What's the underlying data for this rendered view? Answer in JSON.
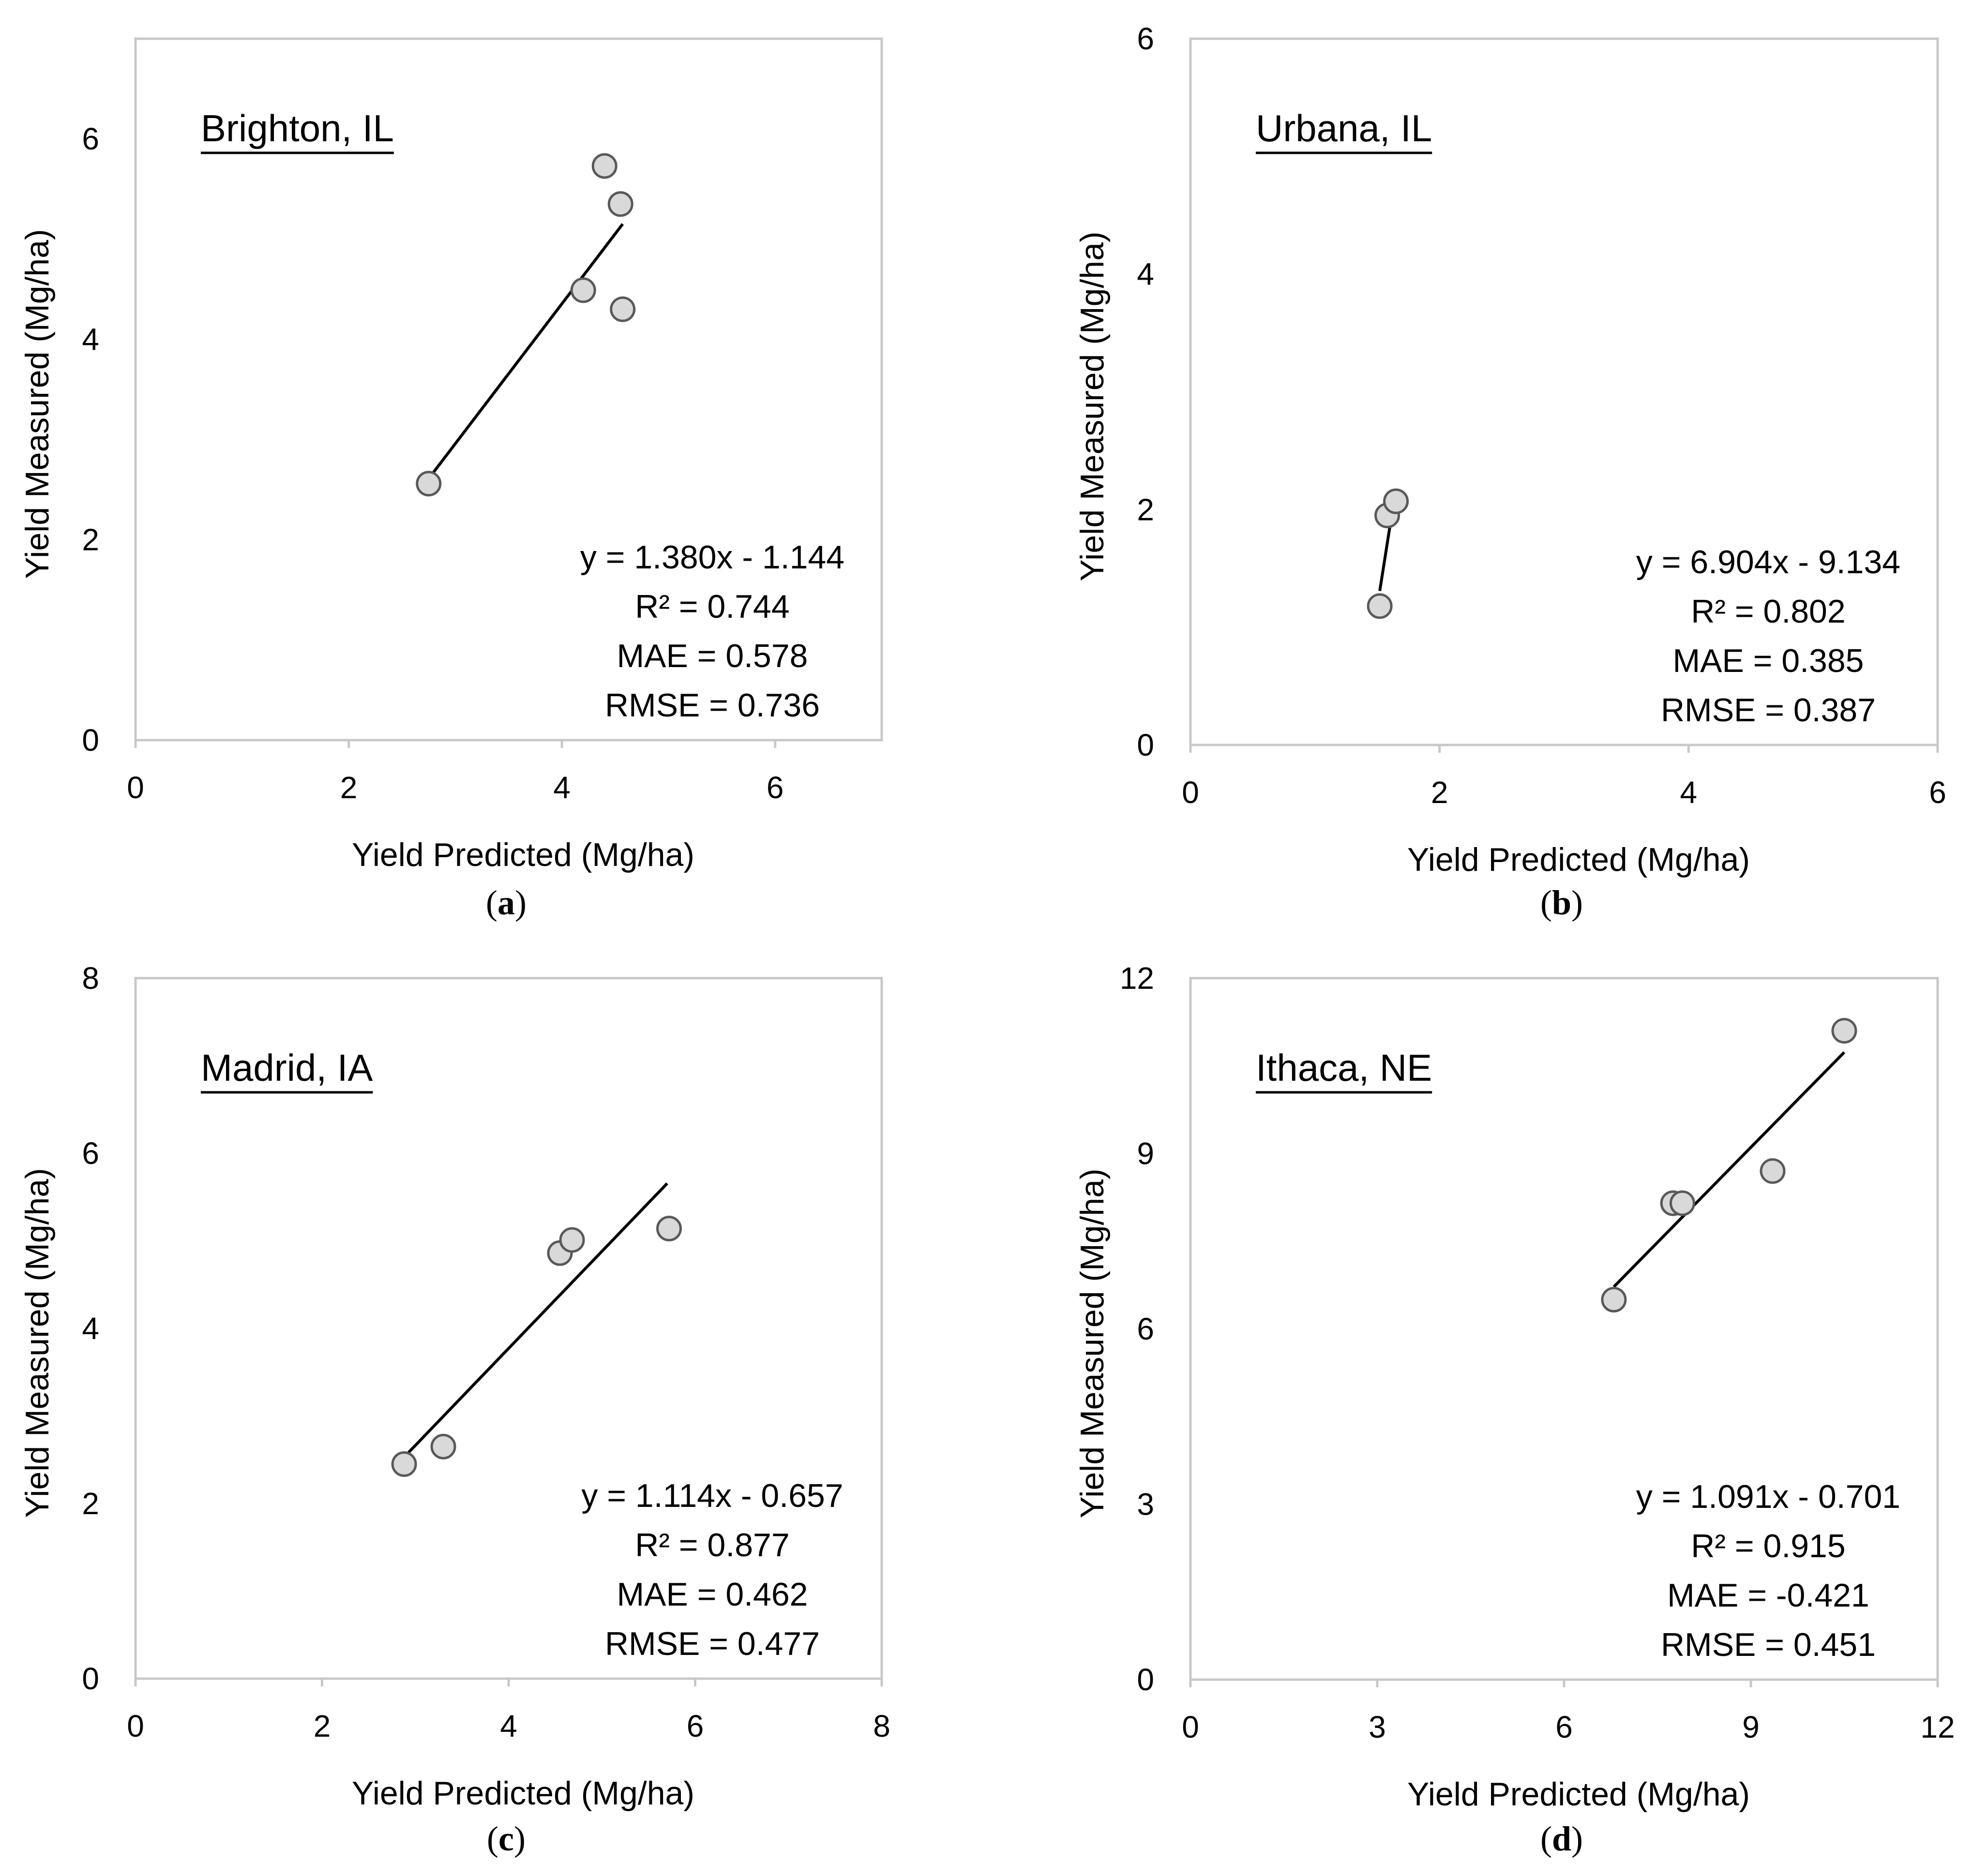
{
  "chart_data": [
    {
      "type": "scatter",
      "panel_label": "a",
      "site": "Brighton, IL",
      "xlabel": "Yield Predicted (Mg/ha)",
      "ylabel": "Yield Measured (Mg/ha)",
      "xlim": [
        0,
        7
      ],
      "ylim": [
        0,
        7
      ],
      "xticks": [
        0,
        2,
        4,
        6
      ],
      "yticks": [
        0,
        2,
        4,
        6
      ],
      "x": [
        2.75,
        4.2,
        4.4,
        4.55,
        4.57
      ],
      "y": [
        2.56,
        4.49,
        5.73,
        5.35,
        4.3
      ],
      "trendline": {
        "x": [
          2.75,
          4.57
        ]
      },
      "stats": [
        "y = 1.380x - 1.144",
        "R² = 0.744",
        "MAE = 0.578",
        "RMSE = 0.736"
      ]
    },
    {
      "type": "scatter",
      "panel_label": "b",
      "site": "Urbana, IL",
      "xlabel": "Yield Predicted (Mg/ha)",
      "ylabel": "Yield Measured (Mg/ha)",
      "xlim": [
        0,
        6
      ],
      "ylim": [
        0,
        6
      ],
      "xticks": [
        0,
        2,
        4,
        6
      ],
      "yticks": [
        0,
        2,
        4,
        6
      ],
      "x": [
        1.52,
        1.58,
        1.65
      ],
      "y": [
        1.18,
        1.95,
        2.07
      ],
      "trendline": {
        "x": [
          1.52,
          1.64
        ]
      },
      "stats": [
        "y = 6.904x - 9.134",
        "R² = 0.802",
        "MAE = 0.385",
        "RMSE = 0.387"
      ]
    },
    {
      "type": "scatter",
      "panel_label": "c",
      "site": "Madrid, IA",
      "xlabel": "Yield Predicted (Mg/ha)",
      "ylabel": "Yield Measured (Mg/ha)",
      "xlim": [
        0,
        8
      ],
      "ylim": [
        0,
        8
      ],
      "xticks": [
        0,
        2,
        4,
        6,
        8
      ],
      "yticks": [
        0,
        2,
        4,
        6,
        8
      ],
      "x": [
        2.88,
        3.3,
        4.55,
        4.68,
        5.72
      ],
      "y": [
        2.45,
        2.65,
        4.86,
        5.01,
        5.14
      ],
      "trendline": {
        "x": [
          2.9,
          5.7
        ]
      },
      "stats": [
        "y = 1.114x - 0.657",
        "R² = 0.877",
        "MAE = 0.462",
        "RMSE = 0.477"
      ]
    },
    {
      "type": "scatter",
      "panel_label": "d",
      "site": "Ithaca, NE",
      "xlabel": "Yield Predicted (Mg/ha)",
      "ylabel": "Yield Measured (Mg/ha)",
      "xlim": [
        0,
        12
      ],
      "ylim": [
        0,
        12
      ],
      "xticks": [
        0,
        3,
        6,
        9,
        12
      ],
      "yticks": [
        0,
        3,
        6,
        9,
        12
      ],
      "x": [
        6.8,
        7.75,
        7.9,
        9.35,
        10.5
      ],
      "y": [
        6.5,
        8.15,
        8.15,
        8.7,
        11.1
      ],
      "trendline": {
        "x": [
          6.8,
          10.5
        ]
      },
      "stats": [
        "y = 1.091x - 0.701",
        "R² = 0.915",
        "MAE = -0.421",
        "RMSE = 0.451"
      ]
    }
  ]
}
